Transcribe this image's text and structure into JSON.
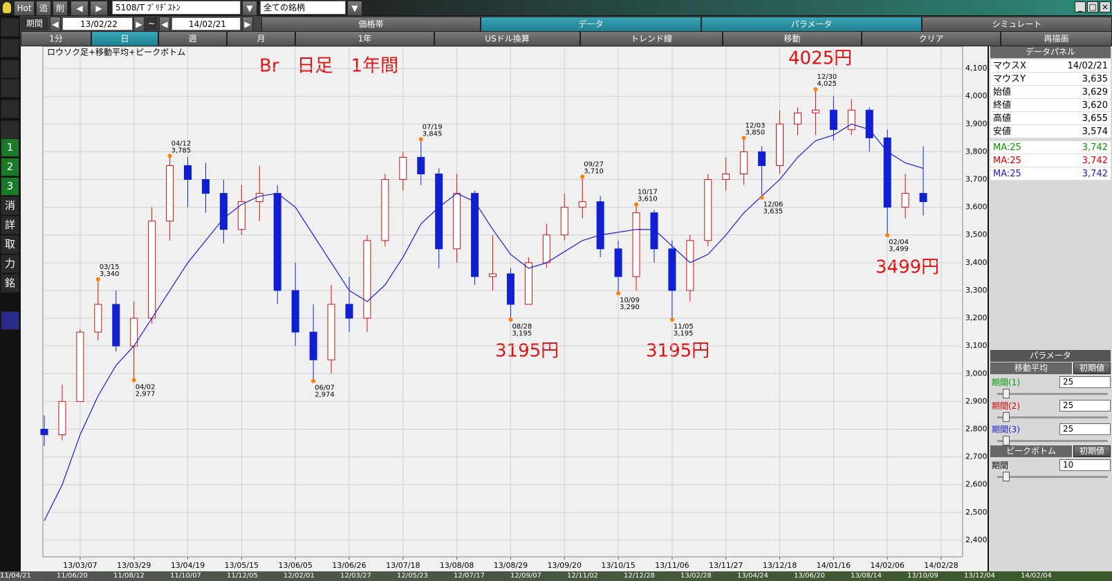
{
  "toolbar": {
    "hot": "Hot",
    "add": "追",
    "del": "削",
    "symbol": "5108/T ﾌﾞﾘﾁﾞｽﾄﾝ",
    "universe": "全ての銘柄",
    "period_label": "期間",
    "from": "13/02/22",
    "tilde": "~",
    "to": "14/02/21",
    "tabs": [
      "価格帯",
      "データ",
      "パラメータ",
      "シミュレート"
    ],
    "intervals": [
      "1分",
      "日",
      "週",
      "月",
      "1年",
      "USドル換算",
      "トレンド線",
      "移動",
      "クリア",
      "再描画"
    ]
  },
  "side_buttons": [
    "1",
    "2",
    "3",
    "消",
    "詳",
    "取",
    "力",
    "銘"
  ],
  "chart_data": {
    "type": "candlestick",
    "title": "ロウソク足+移動平均+ピークボトム",
    "categories": [
      null,
      null,
      "13/03/07",
      null,
      null,
      "13/03/29",
      null,
      null,
      "13/04/19",
      null,
      null,
      "13/05/15",
      null,
      null,
      "13/06/05",
      null,
      null,
      "13/06/26",
      null,
      null,
      "13/07/18",
      null,
      null,
      "13/08/08",
      null,
      null,
      "13/08/29",
      null,
      null,
      "13/09/20",
      null,
      null,
      "13/10/15",
      null,
      null,
      "13/11/06",
      null,
      null,
      "13/11/27",
      null,
      null,
      "13/12/18",
      null,
      null,
      "14/01/16",
      null,
      null,
      "14/02/06",
      null,
      null,
      "14/02/28"
    ],
    "open": [
      2800,
      2780,
      2900,
      3150,
      3250,
      3100,
      3200,
      3550,
      3750,
      3700,
      3650,
      3520,
      3620,
      3650,
      3300,
      3150,
      3050,
      3250,
      3200,
      3480,
      3700,
      3780,
      3720,
      3450,
      3650,
      3350,
      3360,
      3250,
      3400,
      3500,
      3600,
      3620,
      3450,
      3350,
      3580,
      3450,
      3300,
      3480,
      3700,
      3720,
      3800,
      3750,
      3900,
      3940,
      3950,
      3880,
      3950,
      3850,
      3600,
      3650,
      null
    ],
    "high": [
      2850,
      2960,
      3160,
      3340,
      3300,
      3260,
      3600,
      3785,
      3780,
      3760,
      3700,
      3680,
      3750,
      3680,
      3400,
      3250,
      3320,
      3350,
      3500,
      3720,
      3800,
      3845,
      3740,
      3720,
      3660,
      3500,
      3380,
      3420,
      3540,
      3650,
      3710,
      3640,
      3480,
      3610,
      3590,
      3480,
      3500,
      3720,
      3780,
      3850,
      3820,
      3950,
      3960,
      4025,
      4000,
      3990,
      3960,
      3880,
      3720,
      3820,
      null
    ],
    "low": [
      2740,
      2760,
      2900,
      3120,
      3080,
      2977,
      3180,
      3480,
      3600,
      3580,
      3470,
      3500,
      3550,
      3250,
      3100,
      2974,
      3000,
      3150,
      3150,
      3460,
      3660,
      3680,
      3380,
      3400,
      3320,
      3300,
      3195,
      3250,
      3380,
      3480,
      3560,
      3420,
      3290,
      3300,
      3400,
      3195,
      3260,
      3460,
      3660,
      3680,
      3635,
      3720,
      3860,
      3860,
      3840,
      3860,
      3800,
      3499,
      3560,
      3570,
      null
    ],
    "close": [
      2780,
      2900,
      3150,
      3250,
      3100,
      3200,
      3550,
      3750,
      3700,
      3650,
      3520,
      3620,
      3650,
      3300,
      3150,
      3050,
      3250,
      3200,
      3480,
      3700,
      3780,
      3720,
      3450,
      3650,
      3350,
      3360,
      3250,
      3400,
      3500,
      3600,
      3620,
      3450,
      3350,
      3580,
      3450,
      3300,
      3480,
      3700,
      3720,
      3800,
      3750,
      3900,
      3940,
      3950,
      3880,
      3950,
      3850,
      3600,
      3650,
      3620,
      null
    ],
    "up_color": "#d01010",
    "down_color": "#1020d0",
    "ma": [
      2470,
      2600,
      2780,
      2920,
      3030,
      3100,
      3200,
      3300,
      3400,
      3480,
      3560,
      3610,
      3640,
      3650,
      3600,
      3500,
      3400,
      3300,
      3260,
      3320,
      3420,
      3540,
      3600,
      3650,
      3620,
      3520,
      3430,
      3380,
      3400,
      3440,
      3480,
      3500,
      3510,
      3520,
      3520,
      3460,
      3400,
      3430,
      3500,
      3580,
      3640,
      3700,
      3780,
      3840,
      3860,
      3900,
      3880,
      3800,
      3760,
      3740,
      null
    ],
    "ma_color": "#1a1ad8",
    "peaks": [
      {
        "date": "03/15",
        "value": 3340,
        "label": "3,340"
      },
      {
        "date": "04/12",
        "value": 3785,
        "label": "3,785"
      },
      {
        "date": "07/19",
        "value": 3845,
        "label": "3,845"
      },
      {
        "date": "09/27",
        "value": 3710,
        "label": "3,710"
      },
      {
        "date": "10/17",
        "value": 3610,
        "label": "3,610"
      },
      {
        "date": "12/03",
        "value": 3850,
        "label": "3,850"
      },
      {
        "date": "12/30",
        "value": 4025,
        "label": "4,025"
      }
    ],
    "bottoms": [
      {
        "date": "04/02",
        "value": 2977,
        "label": "2,977"
      },
      {
        "date": "06/07",
        "value": 2974,
        "label": "2,974"
      },
      {
        "date": "08/28",
        "value": 3195,
        "label": "3,195"
      },
      {
        "date": "10/09",
        "value": 3290,
        "label": "3,290"
      },
      {
        "date": "11/05",
        "value": 3195,
        "label": "3,195"
      },
      {
        "date": "12/06",
        "value": 3635,
        "label": "3,635"
      },
      {
        "date": "02/04",
        "value": 3499,
        "label": "3,499"
      }
    ],
    "ylim": [
      2340,
      4180
    ],
    "yticks": [
      {
        "value": 2400,
        "label": "2,400"
      },
      {
        "value": 2500,
        "label": "2,500"
      },
      {
        "value": 2600,
        "label": "2,600"
      },
      {
        "value": 2700,
        "label": "2,700"
      },
      {
        "value": 2800,
        "label": "2,800"
      },
      {
        "value": 2900,
        "label": "2,900"
      },
      {
        "value": 3000,
        "label": "3,000"
      },
      {
        "value": 3100,
        "label": "3,100"
      },
      {
        "value": 3200,
        "label": "3,200"
      },
      {
        "value": 3300,
        "label": "3,300"
      },
      {
        "value": 3400,
        "label": "3,400"
      },
      {
        "value": 3500,
        "label": "3,500"
      },
      {
        "value": 3600,
        "label": "3,600"
      },
      {
        "value": 3700,
        "label": "3,700"
      },
      {
        "value": 3800,
        "label": "3,800"
      },
      {
        "value": 3900,
        "label": "3,900"
      },
      {
        "value": 4000,
        "label": "4,000"
      },
      {
        "value": 4100,
        "label": "4,100"
      }
    ],
    "grid": true,
    "annotations": [
      "Br　日足　1年間",
      "4025円",
      "3195円",
      "3195円",
      "3499円"
    ]
  },
  "data_panel": {
    "title": "データパネル",
    "rows": [
      {
        "label": "マウスX",
        "value": "14/02/21"
      },
      {
        "label": "マウスY",
        "value": "3,635"
      },
      {
        "label": "始値",
        "value": "3,629"
      },
      {
        "label": "終値",
        "value": "3,620"
      },
      {
        "label": "高値",
        "value": "3,655"
      },
      {
        "label": "安値",
        "value": "3,574"
      },
      {
        "label": "MA:25",
        "value": "3,742",
        "color": "#009900"
      },
      {
        "label": "MA:25",
        "value": "3,742",
        "color": "#dd0000"
      },
      {
        "label": "MA:25",
        "value": "3,742",
        "color": "#1a1ad8"
      }
    ]
  },
  "param_panel": {
    "title": "パラメータ",
    "ma_title": "移動平均",
    "reset": "初期値",
    "ma_rows": [
      {
        "label": "期間(1)",
        "value": "25",
        "color": "#009900"
      },
      {
        "label": "期間(2)",
        "value": "25",
        "color": "#dd0000"
      },
      {
        "label": "期間(3)",
        "value": "25",
        "color": "#1a1ad8"
      }
    ],
    "pb_title": "ピークボトム",
    "pb_reset": "初期値",
    "pb_label": "期間",
    "pb_value": "10"
  },
  "bottom_strip": [
    "11/04/21",
    "11/06/20",
    "11/08/12",
    "11/10/07",
    "11/12/05",
    "12/02/01",
    "12/03/27",
    "12/05/23",
    "12/07/17",
    "12/09/07",
    "12/11/02",
    "12/12/28",
    "13/02/28",
    "13/04/24",
    "13/06/20",
    "13/08/14",
    "13/10/09",
    "13/12/04",
    "14/02/04"
  ]
}
